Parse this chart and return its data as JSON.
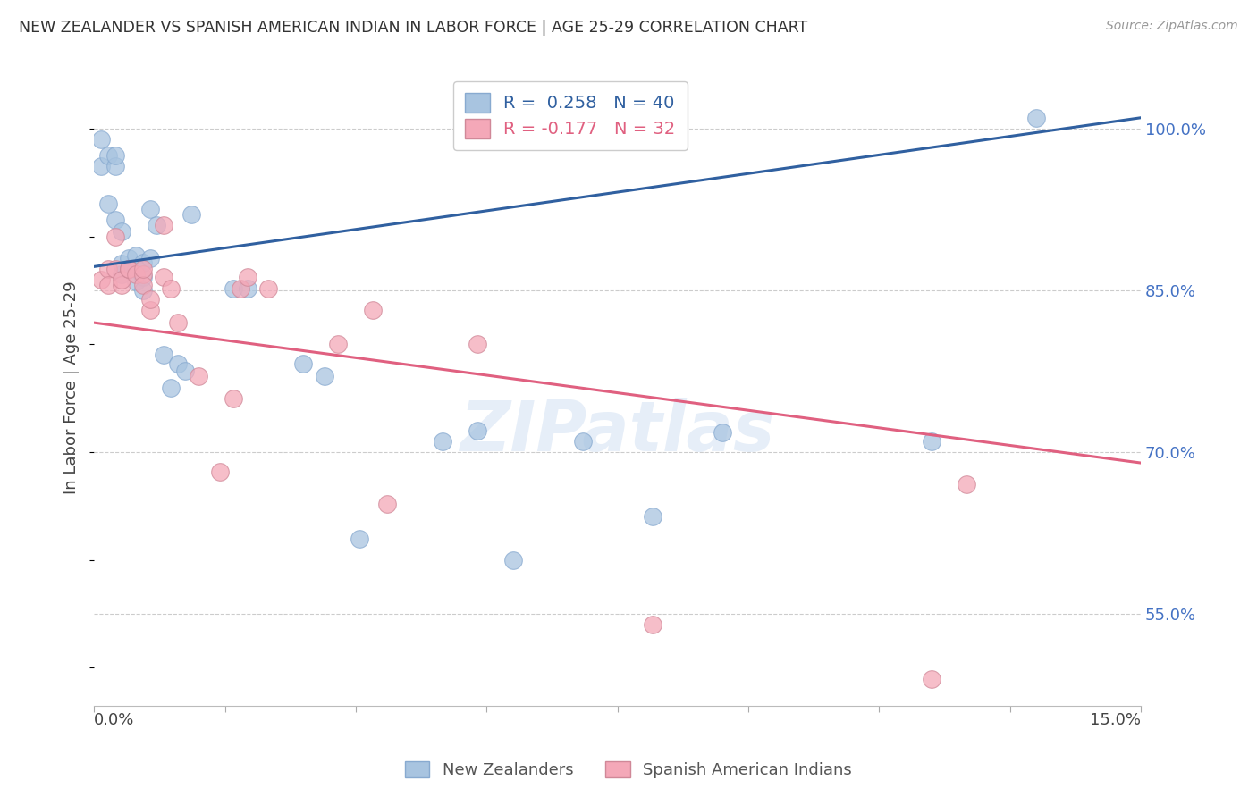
{
  "title": "NEW ZEALANDER VS SPANISH AMERICAN INDIAN IN LABOR FORCE | AGE 25-29 CORRELATION CHART",
  "source": "Source: ZipAtlas.com",
  "ylabel": "In Labor Force | Age 25-29",
  "yticks": [
    55.0,
    70.0,
    85.0,
    100.0
  ],
  "ytick_labels": [
    "55.0%",
    "70.0%",
    "85.0%",
    "100.0%"
  ],
  "xmin": 0.0,
  "xmax": 0.15,
  "ymin": 0.465,
  "ymax": 1.055,
  "blue_R": 0.258,
  "blue_N": 40,
  "pink_R": -0.177,
  "pink_N": 32,
  "legend_label_blue": "New Zealanders",
  "legend_label_pink": "Spanish American Indians",
  "blue_color": "#a8c4e0",
  "pink_color": "#f4a8b8",
  "blue_line_color": "#3060a0",
  "pink_line_color": "#e06080",
  "blue_line_x": [
    0.0,
    0.15
  ],
  "blue_line_y": [
    0.872,
    1.01
  ],
  "pink_line_x": [
    0.0,
    0.15
  ],
  "pink_line_y": [
    0.82,
    0.69
  ],
  "watermark": "ZIPatlas",
  "blue_scatter_x": [
    0.001,
    0.001,
    0.002,
    0.002,
    0.003,
    0.003,
    0.003,
    0.004,
    0.004,
    0.004,
    0.005,
    0.005,
    0.005,
    0.006,
    0.006,
    0.006,
    0.007,
    0.007,
    0.007,
    0.008,
    0.008,
    0.009,
    0.01,
    0.011,
    0.012,
    0.013,
    0.014,
    0.02,
    0.022,
    0.03,
    0.033,
    0.038,
    0.05,
    0.055,
    0.06,
    0.07,
    0.08,
    0.09,
    0.12,
    0.135
  ],
  "blue_scatter_y": [
    0.965,
    0.99,
    0.975,
    0.93,
    0.915,
    0.965,
    0.975,
    0.865,
    0.875,
    0.905,
    0.87,
    0.88,
    0.87,
    0.858,
    0.87,
    0.882,
    0.862,
    0.876,
    0.85,
    0.925,
    0.88,
    0.91,
    0.79,
    0.76,
    0.782,
    0.775,
    0.92,
    0.852,
    0.852,
    0.782,
    0.77,
    0.62,
    0.71,
    0.72,
    0.6,
    0.71,
    0.64,
    0.718,
    0.71,
    1.01
  ],
  "pink_scatter_x": [
    0.001,
    0.002,
    0.002,
    0.003,
    0.003,
    0.004,
    0.004,
    0.005,
    0.005,
    0.006,
    0.007,
    0.007,
    0.007,
    0.008,
    0.008,
    0.01,
    0.01,
    0.011,
    0.012,
    0.015,
    0.018,
    0.02,
    0.021,
    0.022,
    0.025,
    0.035,
    0.04,
    0.042,
    0.055,
    0.08,
    0.12,
    0.125
  ],
  "pink_scatter_y": [
    0.86,
    0.87,
    0.855,
    0.9,
    0.87,
    0.855,
    0.86,
    0.87,
    0.87,
    0.865,
    0.865,
    0.855,
    0.87,
    0.832,
    0.842,
    0.91,
    0.862,
    0.852,
    0.82,
    0.77,
    0.682,
    0.75,
    0.852,
    0.862,
    0.852,
    0.8,
    0.832,
    0.652,
    0.8,
    0.54,
    0.49,
    0.67
  ]
}
